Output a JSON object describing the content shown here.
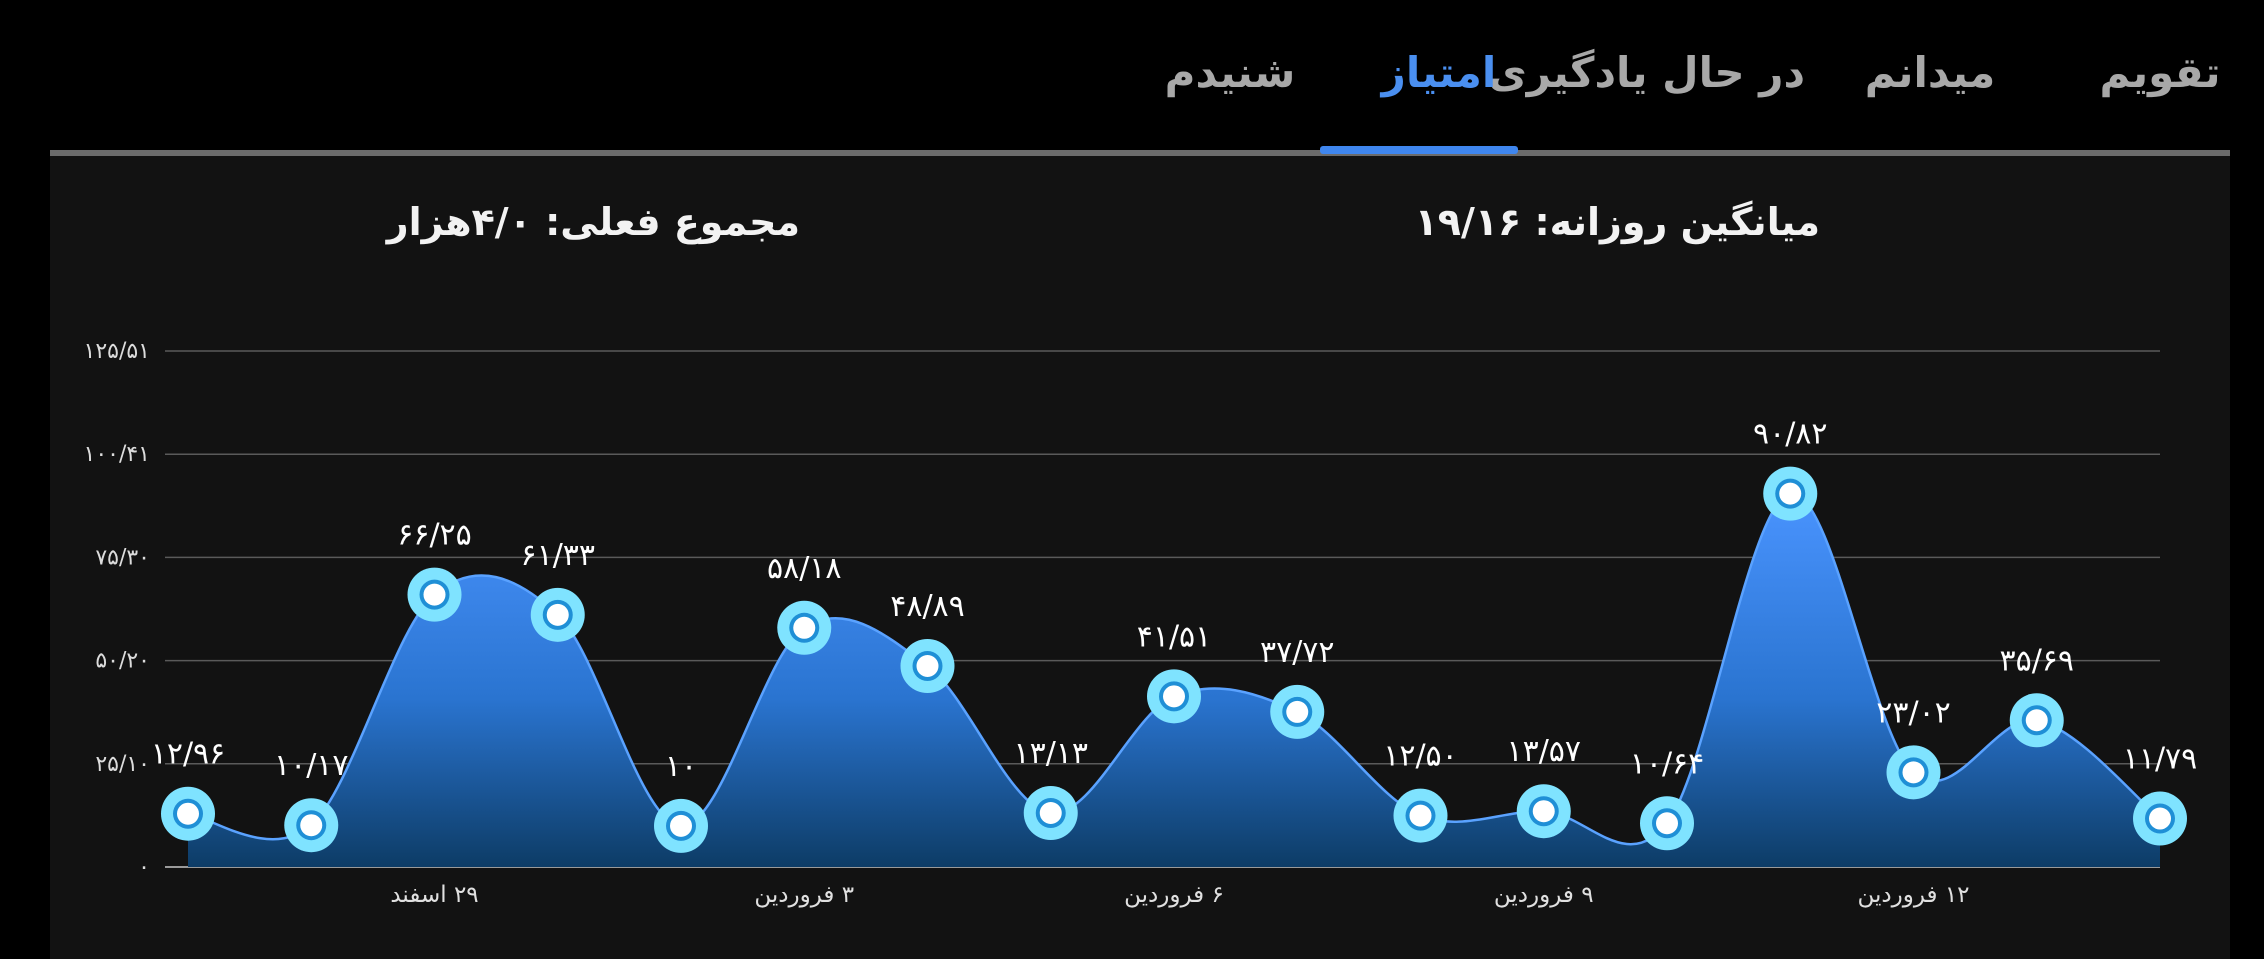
{
  "tabs": [
    {
      "label": "تقویم",
      "active": false
    },
    {
      "label": "میدانم",
      "active": false
    },
    {
      "label": "در حال یادگیری",
      "active": false
    },
    {
      "label": "امتیاز",
      "active": true
    },
    {
      "label": "شنیدم",
      "active": false
    }
  ],
  "stats": {
    "daily_average": "میانگین روزانه: ۱۹/۱۶",
    "current_total": "مجموع فعلی: ۴/۰هزار"
  },
  "colors": {
    "accent": "#3f86ee",
    "area_top": "#4a94ff",
    "area_bottom": "#0d3c66",
    "marker_ring": "#7fe3ff"
  },
  "chart_data": {
    "type": "area",
    "xlabel": "",
    "ylabel": "",
    "y_ticks": [
      {
        "value": 0,
        "label": "۰"
      },
      {
        "value": 25.1,
        "label": "۲۵/۱۰"
      },
      {
        "value": 50.2,
        "label": "۵۰/۲۰"
      },
      {
        "value": 75.3,
        "label": "۷۵/۳۰"
      },
      {
        "value": 100.41,
        "label": "۱۰۰/۴۱"
      },
      {
        "value": 125.51,
        "label": "۱۲۵/۵۱"
      }
    ],
    "ylim": [
      0,
      125.51
    ],
    "grid": true,
    "legend": "none",
    "x_ticks": [
      {
        "index": 2,
        "label": "۲۹ اسفند"
      },
      {
        "index": 5,
        "label": "۳ فروردین"
      },
      {
        "index": 8,
        "label": "۶ فروردین"
      },
      {
        "index": 11,
        "label": "۹ فروردین"
      },
      {
        "index": 14,
        "label": "۱۲ فروردین"
      }
    ],
    "values": [
      12.96,
      10.17,
      66.25,
      61.33,
      10,
      58.18,
      48.89,
      13.13,
      41.51,
      37.72,
      12.5,
      13.57,
      10.64,
      90.82,
      23.02,
      35.69,
      11.79
    ],
    "value_labels": [
      "۱۲/۹۶",
      "۱۰/۱۷",
      "۶۶/۲۵",
      "۶۱/۳۳",
      "۱۰",
      "۵۸/۱۸",
      "۴۸/۸۹",
      "۱۳/۱۳",
      "۴۱/۵۱",
      "۳۷/۷۲",
      "۱۲/۵۰",
      "۱۳/۵۷",
      "۱۰/۶۴",
      "۹۰/۸۲",
      "۲۳/۰۲",
      "۳۵/۶۹",
      "۱۱/۷۹"
    ]
  }
}
